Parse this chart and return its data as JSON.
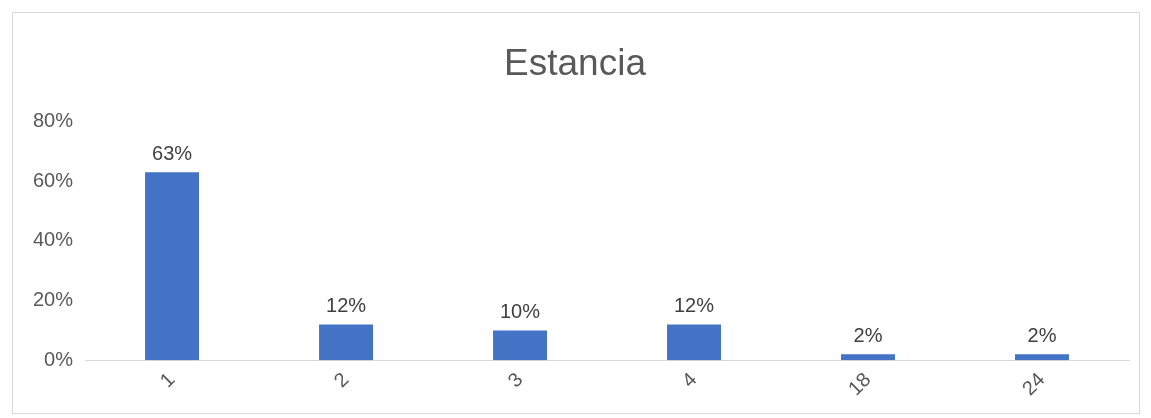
{
  "chart_data": {
    "type": "bar",
    "title": "Estancia",
    "categories": [
      "1",
      "2",
      "3",
      "4",
      "18",
      "24"
    ],
    "values": [
      63,
      12,
      10,
      12,
      2,
      2
    ],
    "value_labels": [
      "63%",
      "12%",
      "10%",
      "12%",
      "2%",
      "2%"
    ],
    "color": "#4472c4",
    "ylim": [
      0,
      80
    ],
    "yticks": [
      {
        "value": 0,
        "label": "0%"
      },
      {
        "value": 20,
        "label": "20%"
      },
      {
        "value": 40,
        "label": "40%"
      },
      {
        "value": 60,
        "label": "60%"
      },
      {
        "value": 80,
        "label": "80%"
      }
    ],
    "grid": false,
    "legend": false
  }
}
